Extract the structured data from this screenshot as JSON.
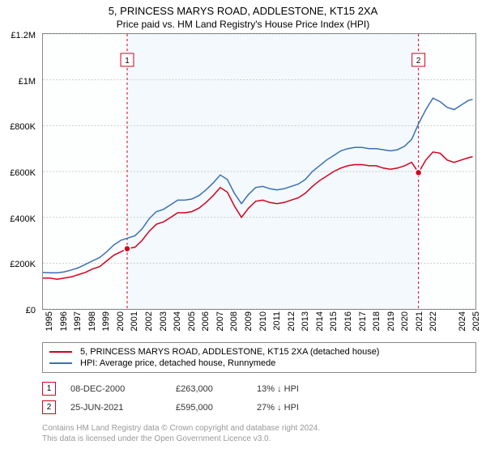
{
  "title": "5, PRINCESS MARYS ROAD, ADDLESTONE, KT15 2XA",
  "subtitle": "Price paid vs. HM Land Registry's House Price Index (HPI)",
  "chart": {
    "type": "line",
    "background_color": "#fdfefe",
    "shade_color": "#eaf3fa",
    "grid_color": "#cccccc",
    "y": {
      "min": 0,
      "max": 1200000,
      "ticks": [
        {
          "v": 0,
          "label": "£0"
        },
        {
          "v": 200000,
          "label": "£200K"
        },
        {
          "v": 400000,
          "label": "£400K"
        },
        {
          "v": 600000,
          "label": "£600K"
        },
        {
          "v": 800000,
          "label": "£800K"
        },
        {
          "v": 1000000,
          "label": "£1M"
        },
        {
          "v": 1200000,
          "label": "£1.2M"
        }
      ]
    },
    "x": {
      "min": 1995,
      "max": 2025.5,
      "ticks": [
        1995,
        1996,
        1997,
        1998,
        1999,
        2000,
        2001,
        2002,
        2003,
        2004,
        2005,
        2006,
        2007,
        2008,
        2009,
        2010,
        2011,
        2012,
        2013,
        2014,
        2015,
        2016,
        2017,
        2018,
        2019,
        2020,
        2021,
        2022,
        2024,
        2025
      ]
    },
    "series": [
      {
        "name": "property",
        "color": "#d6001c",
        "points": [
          [
            1995,
            135000
          ],
          [
            1995.5,
            135000
          ],
          [
            1996,
            130000
          ],
          [
            1996.5,
            135000
          ],
          [
            1997,
            140000
          ],
          [
            1997.5,
            150000
          ],
          [
            1998,
            160000
          ],
          [
            1998.5,
            175000
          ],
          [
            1999,
            185000
          ],
          [
            1999.5,
            210000
          ],
          [
            2000,
            235000
          ],
          [
            2000.5,
            250000
          ],
          [
            2000.94,
            263000
          ],
          [
            2001.5,
            270000
          ],
          [
            2002,
            300000
          ],
          [
            2002.5,
            340000
          ],
          [
            2003,
            370000
          ],
          [
            2003.5,
            380000
          ],
          [
            2004,
            400000
          ],
          [
            2004.5,
            420000
          ],
          [
            2005,
            420000
          ],
          [
            2005.5,
            425000
          ],
          [
            2006,
            440000
          ],
          [
            2006.5,
            465000
          ],
          [
            2007,
            495000
          ],
          [
            2007.5,
            530000
          ],
          [
            2008,
            510000
          ],
          [
            2008.5,
            450000
          ],
          [
            2009,
            400000
          ],
          [
            2009.5,
            440000
          ],
          [
            2010,
            470000
          ],
          [
            2010.5,
            475000
          ],
          [
            2011,
            465000
          ],
          [
            2011.5,
            460000
          ],
          [
            2012,
            465000
          ],
          [
            2012.5,
            475000
          ],
          [
            2013,
            485000
          ],
          [
            2013.5,
            505000
          ],
          [
            2014,
            535000
          ],
          [
            2014.5,
            560000
          ],
          [
            2015,
            580000
          ],
          [
            2015.5,
            600000
          ],
          [
            2016,
            615000
          ],
          [
            2016.5,
            625000
          ],
          [
            2017,
            630000
          ],
          [
            2017.5,
            630000
          ],
          [
            2018,
            625000
          ],
          [
            2018.5,
            625000
          ],
          [
            2019,
            615000
          ],
          [
            2019.5,
            610000
          ],
          [
            2020,
            615000
          ],
          [
            2020.5,
            625000
          ],
          [
            2021,
            640000
          ],
          [
            2021.48,
            595000
          ],
          [
            2022,
            650000
          ],
          [
            2022.5,
            685000
          ],
          [
            2023,
            680000
          ],
          [
            2023.5,
            650000
          ],
          [
            2024,
            640000
          ],
          [
            2024.5,
            650000
          ],
          [
            2025,
            660000
          ],
          [
            2025.3,
            665000
          ]
        ]
      },
      {
        "name": "hpi",
        "color": "#3b6fb6",
        "points": [
          [
            1995,
            160000
          ],
          [
            1995.5,
            158000
          ],
          [
            1996,
            158000
          ],
          [
            1996.5,
            162000
          ],
          [
            1997,
            170000
          ],
          [
            1997.5,
            180000
          ],
          [
            1998,
            195000
          ],
          [
            1998.5,
            210000
          ],
          [
            1999,
            225000
          ],
          [
            1999.5,
            250000
          ],
          [
            2000,
            280000
          ],
          [
            2000.5,
            300000
          ],
          [
            2001,
            310000
          ],
          [
            2001.5,
            320000
          ],
          [
            2002,
            350000
          ],
          [
            2002.5,
            395000
          ],
          [
            2003,
            425000
          ],
          [
            2003.5,
            435000
          ],
          [
            2004,
            455000
          ],
          [
            2004.5,
            475000
          ],
          [
            2005,
            475000
          ],
          [
            2005.5,
            480000
          ],
          [
            2006,
            495000
          ],
          [
            2006.5,
            520000
          ],
          [
            2007,
            550000
          ],
          [
            2007.5,
            585000
          ],
          [
            2008,
            565000
          ],
          [
            2008.5,
            505000
          ],
          [
            2009,
            460000
          ],
          [
            2009.5,
            500000
          ],
          [
            2010,
            530000
          ],
          [
            2010.5,
            535000
          ],
          [
            2011,
            525000
          ],
          [
            2011.5,
            520000
          ],
          [
            2012,
            525000
          ],
          [
            2012.5,
            535000
          ],
          [
            2013,
            545000
          ],
          [
            2013.5,
            565000
          ],
          [
            2014,
            600000
          ],
          [
            2014.5,
            625000
          ],
          [
            2015,
            650000
          ],
          [
            2015.5,
            670000
          ],
          [
            2016,
            690000
          ],
          [
            2016.5,
            700000
          ],
          [
            2017,
            705000
          ],
          [
            2017.5,
            705000
          ],
          [
            2018,
            700000
          ],
          [
            2018.5,
            700000
          ],
          [
            2019,
            695000
          ],
          [
            2019.5,
            690000
          ],
          [
            2020,
            695000
          ],
          [
            2020.5,
            710000
          ],
          [
            2021,
            740000
          ],
          [
            2021.5,
            810000
          ],
          [
            2022,
            870000
          ],
          [
            2022.5,
            920000
          ],
          [
            2023,
            905000
          ],
          [
            2023.5,
            880000
          ],
          [
            2024,
            870000
          ],
          [
            2024.5,
            890000
          ],
          [
            2025,
            910000
          ],
          [
            2025.3,
            915000
          ]
        ]
      }
    ],
    "markers": [
      {
        "n": "1",
        "x": 2000.94,
        "y": 263000,
        "color": "#d6001c"
      },
      {
        "n": "2",
        "x": 2021.48,
        "y": 595000,
        "color": "#d6001c"
      }
    ]
  },
  "legend": {
    "items": [
      {
        "color": "#d6001c",
        "label": "5, PRINCESS MARYS ROAD, ADDLESTONE, KT15 2XA (detached house)"
      },
      {
        "color": "#3b6fb6",
        "label": "HPI: Average price, detached house, Runnymede"
      }
    ]
  },
  "sales": [
    {
      "n": "1",
      "color": "#d6001c",
      "date": "08-DEC-2000",
      "price": "£263,000",
      "pct": "13% ↓ HPI"
    },
    {
      "n": "2",
      "color": "#d6001c",
      "date": "25-JUN-2021",
      "price": "£595,000",
      "pct": "27% ↓ HPI"
    }
  ],
  "footer": {
    "line1": "Contains HM Land Registry data © Crown copyright and database right 2024.",
    "line2": "This data is licensed under the Open Government Licence v3.0."
  }
}
